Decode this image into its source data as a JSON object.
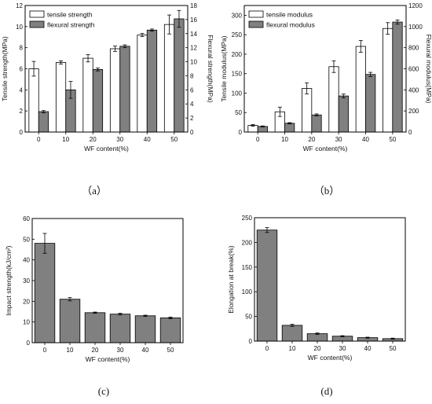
{
  "chart_data": [
    {
      "id": "a",
      "type": "bar",
      "panel_label": "（a）",
      "categories": [
        "0",
        "10",
        "20",
        "30",
        "40",
        "50"
      ],
      "xlabel": "WF content(%)",
      "ylabel": "Tensile strength(MPa)",
      "ylabel_right": "Flexural strength(MPa)",
      "ylim": [
        0,
        12
      ],
      "yticks": [
        0,
        2,
        4,
        6,
        8,
        10,
        12
      ],
      "ylim_right": [
        0,
        18
      ],
      "yticks_right": [
        0,
        2,
        4,
        6,
        8,
        10,
        12,
        14,
        16,
        18
      ],
      "legend": "top-left",
      "series": [
        {
          "name": "tensile strength",
          "axis": "left",
          "color": "#ffffff",
          "values": [
            6.0,
            6.6,
            7.0,
            7.9,
            9.2,
            10.2
          ],
          "errors": [
            0.7,
            0.15,
            0.35,
            0.25,
            0.15,
            0.9
          ]
        },
        {
          "name": "flexural strength",
          "axis": "right",
          "color": "#808080",
          "values": [
            2.9,
            6.0,
            8.9,
            12.2,
            14.5,
            16.1
          ],
          "errors": [
            0.15,
            1.2,
            0.2,
            0.2,
            0.15,
            1.2
          ]
        }
      ]
    },
    {
      "id": "b",
      "type": "bar",
      "panel_label": "（b）",
      "categories": [
        "0",
        "10",
        "20",
        "30",
        "40",
        "50"
      ],
      "xlabel": "WF content(%)",
      "ylabel": "Tensile modulus(MPa)",
      "ylabel_right": "Flexural modulus(MPa)",
      "ylim": [
        0,
        325
      ],
      "yticks": [
        0,
        50,
        100,
        150,
        200,
        250,
        300
      ],
      "ylim_right": [
        0,
        1200
      ],
      "yticks_right": [
        0,
        200,
        400,
        600,
        800,
        1000,
        1200
      ],
      "legend": "top-left",
      "series": [
        {
          "name": "tensile modulus",
          "axis": "left",
          "color": "#ffffff",
          "values": [
            17,
            52,
            112,
            168,
            220,
            266
          ],
          "errors": [
            2,
            12,
            14,
            15,
            15,
            15
          ]
        },
        {
          "name": "flexural modulus",
          "axis": "right",
          "color": "#808080",
          "values": [
            53,
            83,
            162,
            342,
            546,
            1043
          ],
          "errors": [
            5,
            6,
            10,
            18,
            20,
            20
          ]
        }
      ]
    },
    {
      "id": "c",
      "type": "bar",
      "panel_label": "(c)",
      "categories": [
        "0",
        "10",
        "20",
        "30",
        "40",
        "50"
      ],
      "xlabel": "WF content(%)",
      "ylabel": "Impact strength(kJ/cm²)",
      "ylim": [
        0,
        60
      ],
      "yticks": [
        0,
        10,
        20,
        30,
        40,
        50,
        60
      ],
      "series": [
        {
          "name": "",
          "color": "#808080",
          "values": [
            48,
            21,
            14.5,
            13.8,
            13,
            12
          ],
          "errors": [
            4.8,
            0.8,
            0.3,
            0.4,
            0.3,
            0.4
          ]
        }
      ]
    },
    {
      "id": "d",
      "type": "bar",
      "panel_label": "(d)",
      "categories": [
        "0",
        "10",
        "20",
        "30",
        "40",
        "50"
      ],
      "xlabel": "WF content(%)",
      "ylabel": "Elongation at break(%)",
      "ylim": [
        0,
        250
      ],
      "yticks": [
        0,
        50,
        100,
        150,
        200,
        250
      ],
      "series": [
        {
          "name": "",
          "color": "#808080",
          "values": [
            225,
            32,
            15,
            10,
            7,
            5
          ],
          "errors": [
            5,
            2,
            1.5,
            1,
            1,
            1
          ]
        }
      ]
    }
  ]
}
